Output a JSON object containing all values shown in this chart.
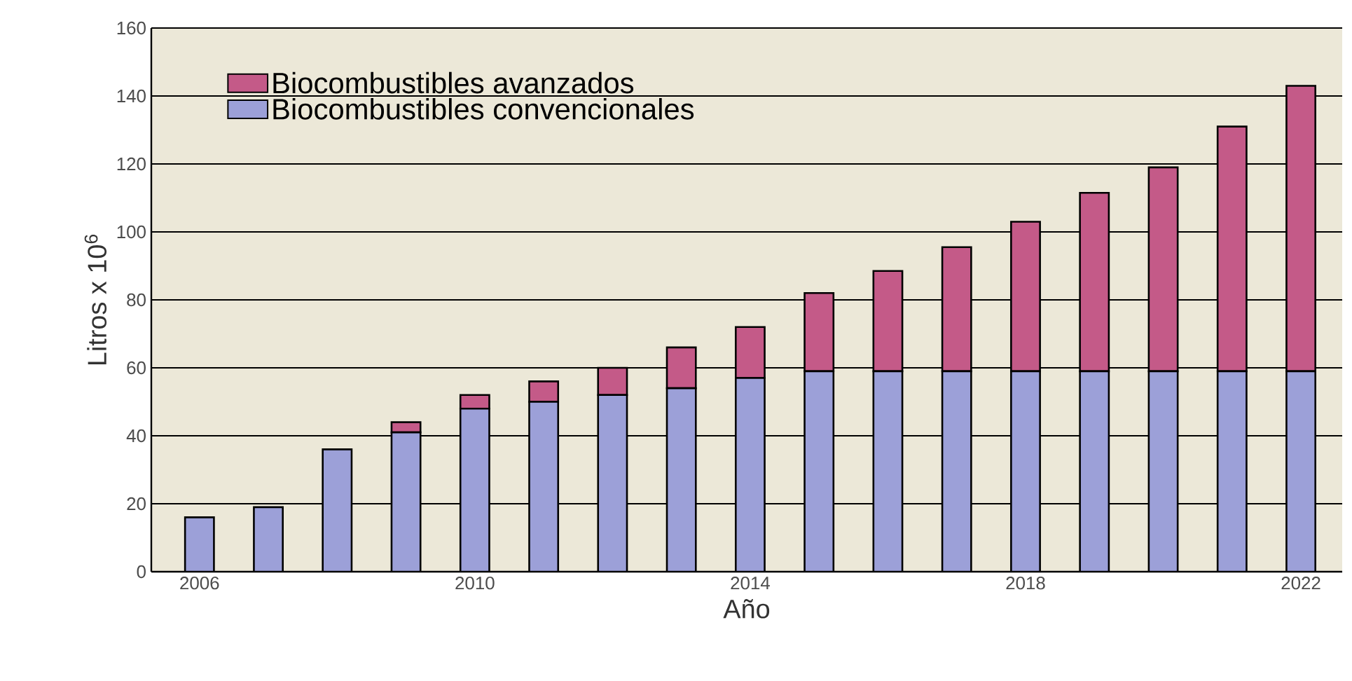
{
  "chart_data": {
    "type": "bar",
    "stacked": true,
    "x": [
      2006,
      2007,
      2008,
      2009,
      2010,
      2011,
      2012,
      2013,
      2014,
      2015,
      2016,
      2017,
      2018,
      2019,
      2020,
      2021,
      2022
    ],
    "series": [
      {
        "name": "Biocombustibles convencionales",
        "color": "#9ca0d8",
        "values": [
          16,
          19,
          36,
          41,
          48,
          50,
          52,
          54,
          57,
          59,
          59,
          59,
          59,
          59,
          59,
          59,
          59
        ]
      },
      {
        "name": "Biocombustibles avanzados",
        "color": "#c45a88",
        "values": [
          0,
          0,
          0,
          3,
          4,
          6,
          8,
          12,
          15,
          23,
          29.5,
          36.5,
          44,
          52.5,
          60,
          72,
          84
        ]
      }
    ],
    "xlabel": "Año",
    "ylabel": "Litros x 10$^{6}$",
    "xlim": [
      2005.3,
      2022.6
    ],
    "ylim": [
      0,
      160
    ],
    "xticks": [
      2006,
      2010,
      2014,
      2018,
      2022
    ],
    "yticks": [
      0,
      20,
      40,
      60,
      80,
      100,
      120,
      140,
      160
    ],
    "grid": "y",
    "legend": "top left"
  }
}
